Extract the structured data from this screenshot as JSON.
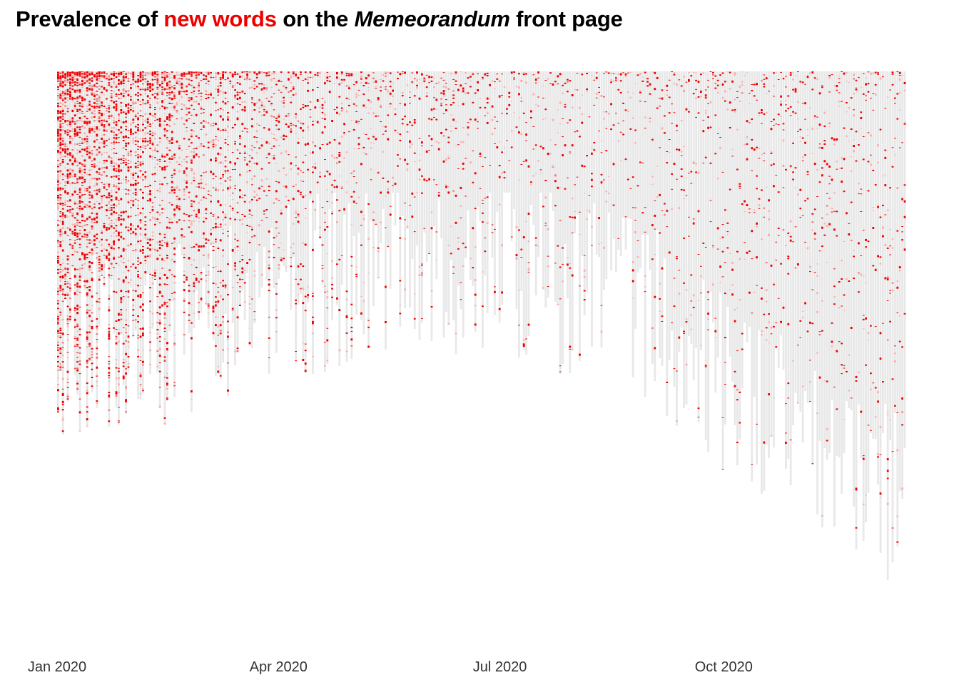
{
  "chart_data": {
    "type": "heatmap",
    "title": {
      "part1": "Prevalence of ",
      "highlight": "new words",
      "part2": " on the ",
      "italic": "Memeorandum",
      "part3": " front page"
    },
    "xlabel": "",
    "ylabel": "",
    "x_axis": {
      "type": "date",
      "range": [
        "2020-01-01",
        "2020-12-15"
      ],
      "ticks": [
        {
          "date": "2020-01-01",
          "label": "Jan 2020"
        },
        {
          "date": "2020-04-01",
          "label": "Apr 2020"
        },
        {
          "date": "2020-07-01",
          "label": "Jul 2020"
        },
        {
          "date": "2020-10-01",
          "label": "Oct 2020"
        }
      ]
    },
    "y_axis": {
      "visible": false
    },
    "grid": false,
    "legend": "none",
    "colors": {
      "new_word": "#ee0000",
      "new_word_faded": "#f5b0b0",
      "seen_word": "#e8e8e8",
      "title_highlight": "#ee0000"
    },
    "series_description_values": {
      "days": 350,
      "words_per_day_range": [
        170,
        775
      ],
      "new_word_share_start": 0.62,
      "new_word_share_end": 0.05
    }
  }
}
